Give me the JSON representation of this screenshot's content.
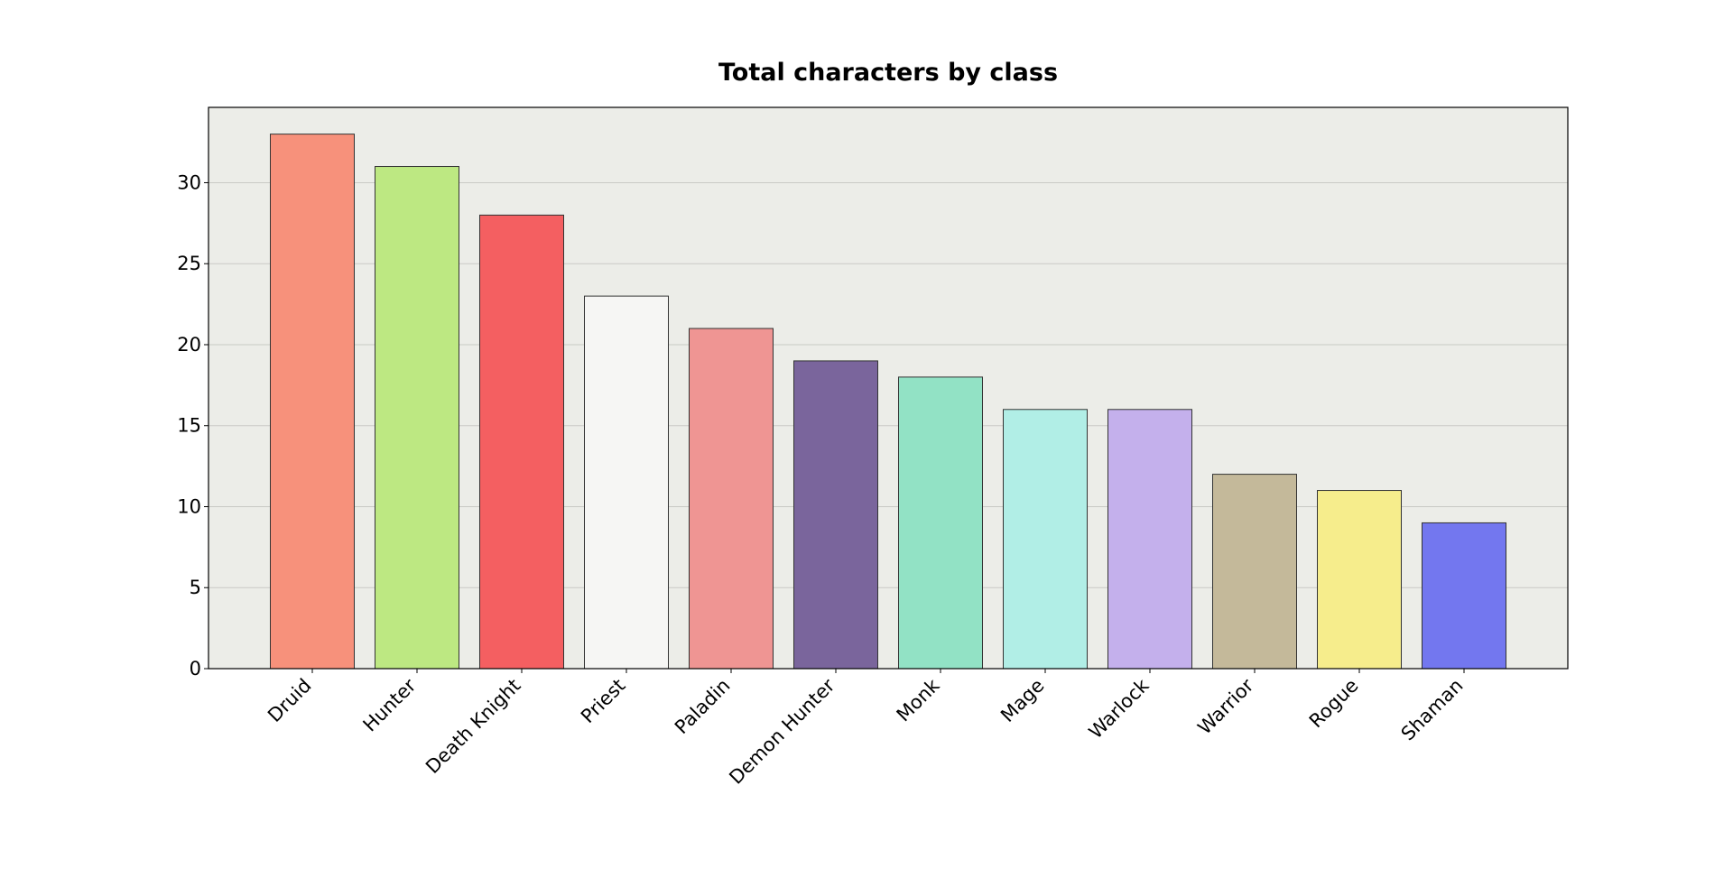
{
  "chart_data": {
    "type": "bar",
    "title": "Total characters by class",
    "xlabel": "",
    "ylabel": "",
    "categories": [
      "Druid",
      "Hunter",
      "Death Knight",
      "Priest",
      "Paladin",
      "Demon Hunter",
      "Monk",
      "Mage",
      "Warlock",
      "Warrior",
      "Rogue",
      "Shaman"
    ],
    "values": [
      33,
      31,
      28,
      23,
      21,
      19,
      18,
      16,
      16,
      12,
      11,
      9
    ],
    "colors": [
      "#f7917b",
      "#bde882",
      "#f45f61",
      "#f6f6f4",
      "#ef9593",
      "#7a659c",
      "#92e2c5",
      "#b1eee6",
      "#c4b0ec",
      "#c4b99a",
      "#f6ed8c",
      "#7377ef"
    ],
    "ylim": [
      0,
      34.65
    ],
    "yticks": [
      0,
      5,
      10,
      15,
      20,
      25,
      30
    ],
    "grid": "y",
    "background": "#ecede8",
    "bar_edge_color": "#333333",
    "legend": "none"
  }
}
